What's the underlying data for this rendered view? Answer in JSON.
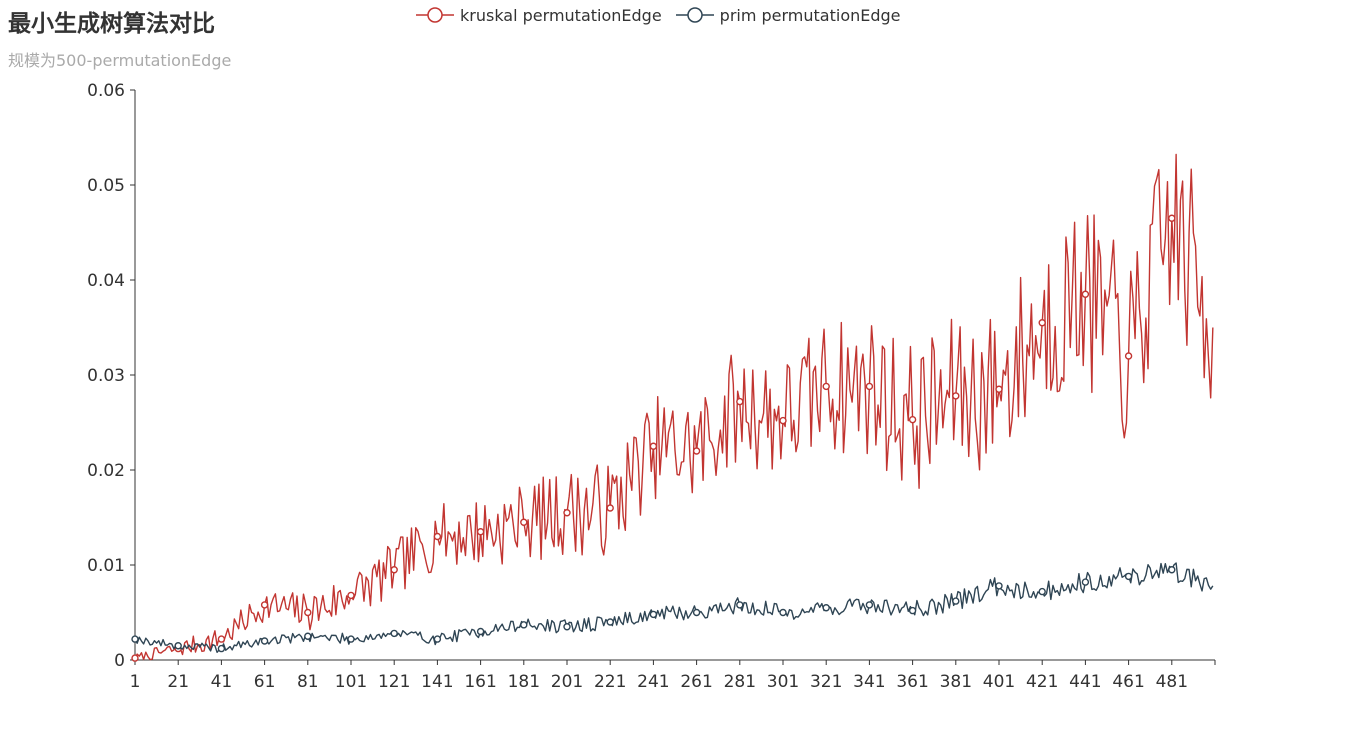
{
  "title": "最小生成树算法对比",
  "subtitle": "规模为500-permutationEdge",
  "legend": [
    {
      "name": "kruskal permutationEdge",
      "color": "#c23531"
    },
    {
      "name": "prim permutationEdge",
      "color": "#2f4554"
    }
  ],
  "chart_data": {
    "type": "line",
    "title": "最小生成树算法对比",
    "subtitle": "规模为500-permutationEdge",
    "x_start": 1,
    "x_end": 500,
    "x_ticks": [
      1,
      21,
      41,
      61,
      81,
      101,
      121,
      141,
      161,
      181,
      201,
      221,
      241,
      261,
      281,
      301,
      321,
      341,
      361,
      381,
      401,
      421,
      441,
      461,
      481
    ],
    "ylim": [
      0,
      0.06
    ],
    "y_ticks": [
      0,
      0.01,
      0.02,
      0.03,
      0.04,
      0.05,
      0.06
    ],
    "legend_position": "top-center",
    "grid": false,
    "series": [
      {
        "name": "kruskal permutationEdge",
        "color": "#c23531",
        "trend": "roughly linear growth from ~0 at n=1 to ~0.042 at n=500, high variance (±0.01) that grows with n; peaks near 0.052",
        "points": [
          {
            "x": 1,
            "y": 0.0002
          },
          {
            "x": 21,
            "y": 0.0012
          },
          {
            "x": 41,
            "y": 0.0022
          },
          {
            "x": 61,
            "y": 0.0058
          },
          {
            "x": 81,
            "y": 0.005
          },
          {
            "x": 101,
            "y": 0.0068
          },
          {
            "x": 121,
            "y": 0.0095
          },
          {
            "x": 141,
            "y": 0.013
          },
          {
            "x": 161,
            "y": 0.0135
          },
          {
            "x": 181,
            "y": 0.0145
          },
          {
            "x": 201,
            "y": 0.0155
          },
          {
            "x": 221,
            "y": 0.016
          },
          {
            "x": 241,
            "y": 0.0225
          },
          {
            "x": 261,
            "y": 0.022
          },
          {
            "x": 281,
            "y": 0.0272
          },
          {
            "x": 301,
            "y": 0.0252
          },
          {
            "x": 321,
            "y": 0.0288
          },
          {
            "x": 341,
            "y": 0.0288
          },
          {
            "x": 361,
            "y": 0.0253
          },
          {
            "x": 381,
            "y": 0.0278
          },
          {
            "x": 401,
            "y": 0.0285
          },
          {
            "x": 421,
            "y": 0.0355
          },
          {
            "x": 441,
            "y": 0.0385
          },
          {
            "x": 461,
            "y": 0.032
          },
          {
            "x": 481,
            "y": 0.0465
          },
          {
            "x": 500,
            "y": 0.035
          }
        ]
      },
      {
        "name": "prim permutationEdge",
        "color": "#2f4554",
        "trend": "slow linear growth from ~0.0015 at n=1 to ~0.0075 at n=500, low variance (±0.0012)",
        "points": [
          {
            "x": 1,
            "y": 0.0022
          },
          {
            "x": 21,
            "y": 0.0015
          },
          {
            "x": 41,
            "y": 0.0012
          },
          {
            "x": 61,
            "y": 0.002
          },
          {
            "x": 81,
            "y": 0.0025
          },
          {
            "x": 101,
            "y": 0.0022
          },
          {
            "x": 121,
            "y": 0.0028
          },
          {
            "x": 141,
            "y": 0.0022
          },
          {
            "x": 161,
            "y": 0.003
          },
          {
            "x": 181,
            "y": 0.0037
          },
          {
            "x": 201,
            "y": 0.0035
          },
          {
            "x": 221,
            "y": 0.004
          },
          {
            "x": 241,
            "y": 0.0048
          },
          {
            "x": 261,
            "y": 0.005
          },
          {
            "x": 281,
            "y": 0.0058
          },
          {
            "x": 301,
            "y": 0.005
          },
          {
            "x": 321,
            "y": 0.0055
          },
          {
            "x": 341,
            "y": 0.0058
          },
          {
            "x": 361,
            "y": 0.0052
          },
          {
            "x": 381,
            "y": 0.0062
          },
          {
            "x": 401,
            "y": 0.0078
          },
          {
            "x": 421,
            "y": 0.0072
          },
          {
            "x": 441,
            "y": 0.0082
          },
          {
            "x": 461,
            "y": 0.0088
          },
          {
            "x": 481,
            "y": 0.0095
          },
          {
            "x": 500,
            "y": 0.0078
          }
        ]
      }
    ]
  }
}
